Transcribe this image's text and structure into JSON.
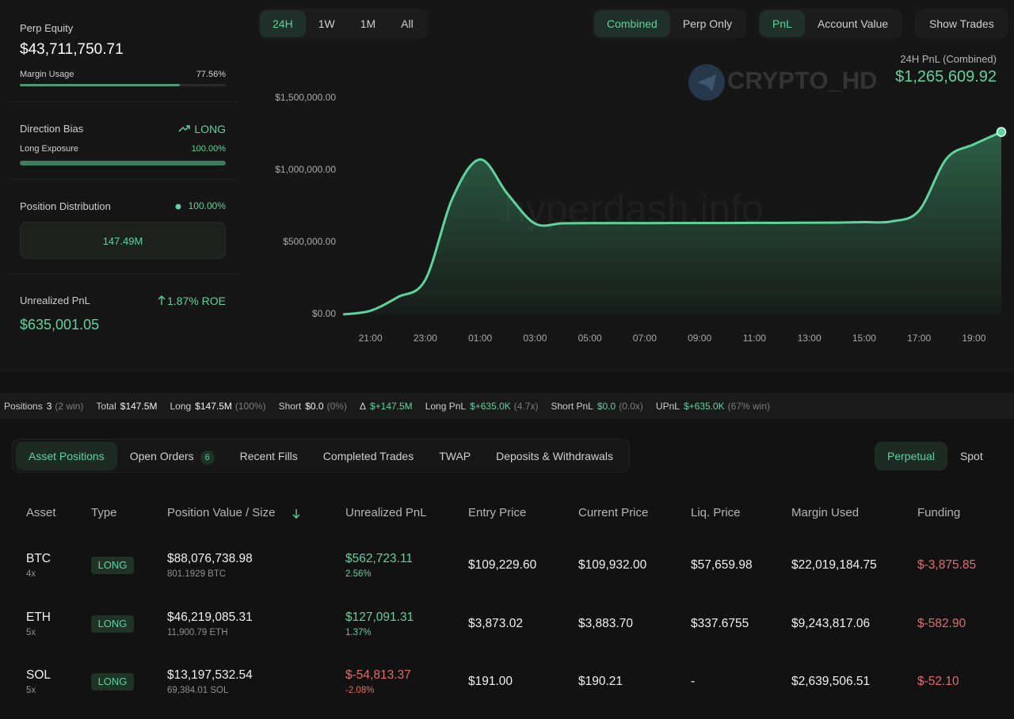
{
  "sidebar": {
    "perp_equity_label": "Perp Equity",
    "perp_equity": "$43,711,750.71",
    "margin_usage_label": "Margin Usage",
    "margin_usage": "77.56%",
    "direction_bias_label": "Direction Bias",
    "direction_bias": "LONG",
    "long_exposure_label": "Long Exposure",
    "long_exposure": "100.00%",
    "position_distribution_label": "Position Distribution",
    "position_distribution_pct": "100.00%",
    "position_distribution_value": "147.49M",
    "unrealized_pnl_label": "Unrealized PnL",
    "roe": "1.87% ROE",
    "unrealized_pnl": "$635,001.05"
  },
  "toolbar": {
    "ranges": [
      "24H",
      "1W",
      "1M",
      "All"
    ],
    "modes": [
      "Combined",
      "Perp Only"
    ],
    "metrics": [
      "PnL",
      "Account Value"
    ],
    "show_trades": "Show Trades"
  },
  "chart_header": {
    "label": "24H PnL (Combined)",
    "value": "$1,265,609.92"
  },
  "watermarks": [
    "CRYPTO_HD",
    "hyperdash.info"
  ],
  "chart_data": {
    "type": "area",
    "categories": [
      null,
      "21:00",
      null,
      "23:00",
      null,
      "01:00",
      null,
      "03:00",
      null,
      "05:00",
      null,
      "07:00",
      null,
      "09:00",
      null,
      "11:00",
      null,
      "13:00",
      null,
      "15:00",
      null,
      "17:00",
      null,
      "19:00",
      null
    ],
    "values": [
      0,
      25000,
      120000,
      240000,
      810000,
      1075000,
      835000,
      630000,
      632000,
      633000,
      633000,
      633000,
      634000,
      634000,
      634000,
      635000,
      635000,
      636000,
      637000,
      640000,
      645000,
      720000,
      1080000,
      1180000,
      1265609.92
    ],
    "color": "#5ed39b",
    "ylim": [
      0,
      1500000
    ],
    "yticks": [
      {
        "value": 0,
        "label": "$0.00"
      },
      {
        "value": 500000,
        "label": "$500,000.00"
      },
      {
        "value": 1000000,
        "label": "$1,000,000.00"
      },
      {
        "value": 1500000,
        "label": "$1,500,000.00"
      }
    ],
    "grid": false
  },
  "stats": [
    {
      "label": "Positions",
      "value": "3",
      "note": "(2 win)"
    },
    {
      "label": "Total",
      "value": "$147.5M"
    },
    {
      "label": "Long",
      "value": "$147.5M",
      "note": "(100%)"
    },
    {
      "label": "Short",
      "value": "$0.0",
      "note": "(0%)"
    },
    {
      "label": "Δ",
      "value": "$+147.5M",
      "color": "#5ed39b"
    },
    {
      "label": "Long PnL",
      "value": "$+635.0K",
      "note": "(4.7x)",
      "color": "#5ed39b"
    },
    {
      "label": "Short PnL",
      "value": "$0.0",
      "note": "(0.0x)",
      "color": "#5ed39b"
    },
    {
      "label": "UPnL",
      "value": "$+635.0K",
      "note": "(67% win)",
      "color": "#5ed39b"
    }
  ],
  "tabs": [
    {
      "label": "Asset Positions"
    },
    {
      "label": "Open Orders",
      "badge": "6"
    },
    {
      "label": "Recent Fills"
    },
    {
      "label": "Completed Trades"
    },
    {
      "label": "TWAP"
    },
    {
      "label": "Deposits & Withdrawals"
    }
  ],
  "market_tabs": [
    "Perpetual",
    "Spot"
  ],
  "table": {
    "columns": [
      "Asset",
      "Type",
      "Position Value / Size",
      "Unrealized PnL",
      "Entry Price",
      "Current Price",
      "Liq. Price",
      "Margin Used",
      "Funding"
    ],
    "rows": [
      {
        "asset": "BTC",
        "leverage": "4x",
        "type": "LONG",
        "value": "$88,076,738.98",
        "size": "801.1929 BTC",
        "upnl": "$562,723.11",
        "upnl_pct": "2.56%",
        "entry": "$109,229.60",
        "current": "$109,932.00",
        "liq": "$57,659.98",
        "margin": "$22,019,184.75",
        "funding": "$-3,875.85"
      },
      {
        "asset": "ETH",
        "leverage": "5x",
        "type": "LONG",
        "value": "$46,219,085.31",
        "size": "11,900.79 ETH",
        "upnl": "$127,091.31",
        "upnl_pct": "1.37%",
        "entry": "$3,873.02",
        "current": "$3,883.70",
        "liq": "$337.6755",
        "margin": "$9,243,817.06",
        "funding": "$-582.90"
      },
      {
        "asset": "SOL",
        "leverage": "5x",
        "type": "LONG",
        "value": "$13,197,532.54",
        "size": "69,384.01 SOL",
        "upnl": "$-54,813.37",
        "upnl_pct": "-2.08%",
        "entry": "$191.00",
        "current": "$190.21",
        "liq": "-",
        "margin": "$2,639,506.51",
        "funding": "$-52.10"
      }
    ]
  }
}
